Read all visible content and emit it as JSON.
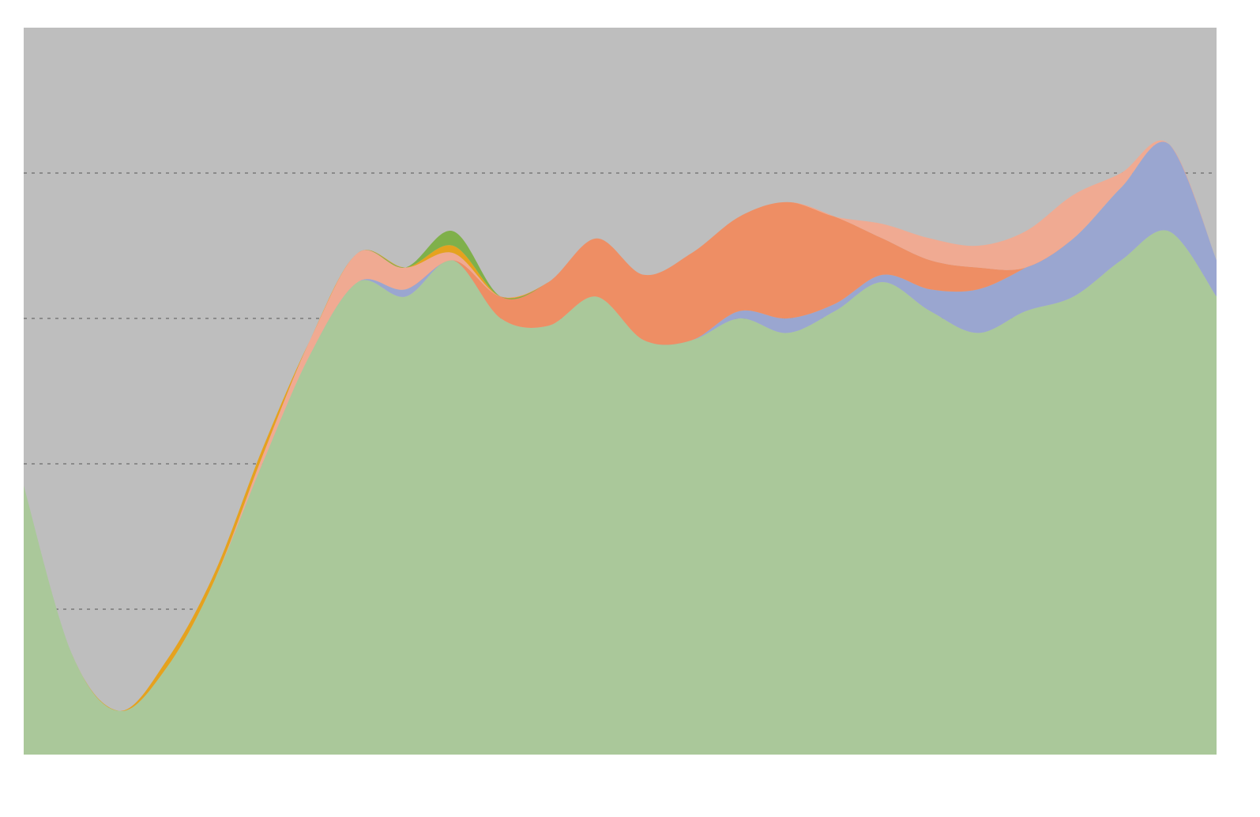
{
  "chart_data": {
    "type": "area",
    "stacked": true,
    "title": "",
    "xlabel": "",
    "ylabel": "",
    "x": [
      0,
      1,
      2,
      3,
      4,
      5,
      6,
      7,
      8,
      9,
      10,
      11,
      12,
      13,
      14,
      15,
      16,
      17,
      18,
      19,
      20,
      21,
      22,
      23,
      24,
      25
    ],
    "ylim": [
      0,
      100
    ],
    "yticks": [
      20,
      40,
      60,
      80
    ],
    "grid": "horizontal",
    "legend": "none",
    "series": [
      {
        "color": "#aac89a",
        "values": [
          37,
          14,
          6,
          12,
          24,
          40,
          55,
          65,
          63,
          68,
          60,
          59,
          63,
          57,
          57,
          60,
          58,
          61,
          65,
          61,
          58,
          61,
          63,
          68,
          72,
          63
        ]
      },
      {
        "color": "#9aa6d0",
        "values": [
          0,
          0,
          0,
          0,
          0,
          0,
          0,
          0,
          1,
          0,
          0,
          0,
          0,
          0,
          0,
          1,
          2,
          1,
          1,
          3,
          6,
          6,
          8,
          10,
          12,
          5
        ]
      },
      {
        "color": "#ee8e64",
        "values": [
          0,
          0,
          0,
          0,
          0,
          0,
          0,
          0,
          0,
          0,
          3,
          6,
          8,
          9,
          12,
          13,
          16,
          12,
          5,
          4,
          3,
          0,
          0,
          0,
          0,
          0
        ]
      },
      {
        "color": "#f0aa92",
        "values": [
          0,
          0,
          0,
          0,
          0,
          1,
          2,
          4,
          3,
          1,
          0,
          0,
          0,
          0,
          0,
          0,
          0,
          0,
          2,
          3,
          3,
          5,
          6,
          2,
          0,
          0
        ]
      },
      {
        "color": "#e5a21e",
        "values": [
          0,
          0,
          0,
          1,
          1,
          1,
          0,
          0,
          0,
          1,
          0,
          0,
          0,
          0,
          0,
          0,
          0,
          0,
          0,
          0,
          0,
          0,
          0,
          0,
          0,
          0
        ]
      },
      {
        "color": "#7fb04a",
        "values": [
          0,
          0,
          0,
          0,
          0,
          0,
          0,
          0,
          0,
          2,
          0,
          0,
          0,
          0,
          0,
          0,
          0,
          0,
          0,
          0,
          0,
          0,
          0,
          0,
          0,
          0
        ]
      }
    ],
    "background_color": "#bebebe",
    "gridline_color": "#8a8a8a"
  }
}
